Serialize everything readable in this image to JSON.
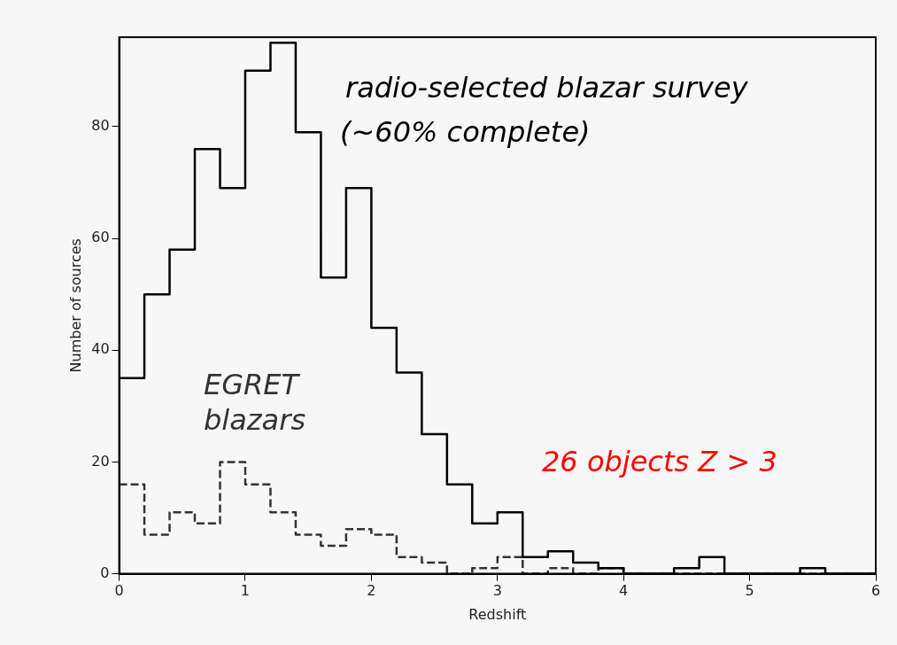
{
  "chart_data": {
    "type": "histogram",
    "xlabel": "Redshift",
    "ylabel": "Number of sources",
    "bins": [
      0,
      0.2,
      0.4,
      0.6,
      0.8,
      1,
      1.2,
      1.4,
      1.6,
      1.8,
      2,
      2.2,
      2.4,
      2.6,
      2.8,
      3,
      3.2,
      3.4,
      3.6,
      3.8,
      4,
      4.2,
      4.4,
      4.6,
      4.8,
      5,
      5.2,
      5.4,
      5.6,
      5.8,
      6
    ],
    "series": [
      {
        "name": "radio-selected blazar survey (~60% complete)",
        "color": "#000000",
        "line_style": "solid",
        "values": [
          35,
          50,
          58,
          76,
          69,
          90,
          95,
          79,
          53,
          69,
          44,
          36,
          25,
          16,
          9,
          11,
          3,
          4,
          2,
          1,
          0,
          0,
          1,
          3,
          0,
          0,
          0,
          1,
          0,
          0
        ]
      },
      {
        "name": "EGRET blazars",
        "color": "#333333",
        "line_style": "dashed",
        "values": [
          16,
          7,
          11,
          9,
          20,
          16,
          11,
          7,
          5,
          8,
          7,
          3,
          2,
          0,
          1,
          3,
          0,
          1,
          0,
          1,
          0,
          0,
          0,
          0,
          0,
          0,
          0,
          0,
          0,
          0
        ]
      }
    ],
    "annotations": [
      "26 objects Z > 3"
    ],
    "xlim": [
      0,
      6
    ],
    "xticks": [
      0,
      1,
      2,
      3,
      4,
      5,
      6
    ],
    "ylim": [
      0,
      96
    ],
    "yticks": [
      0,
      20,
      40,
      60,
      80
    ],
    "grid": false,
    "legend": false
  }
}
